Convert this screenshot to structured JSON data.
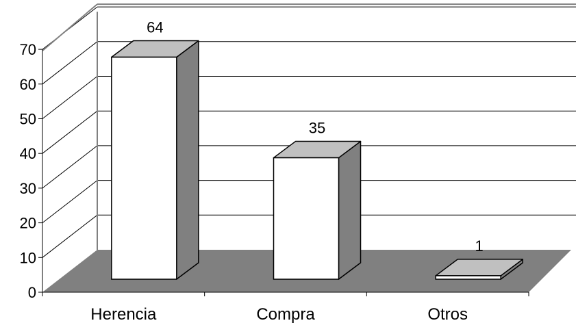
{
  "chart_data": {
    "type": "bar",
    "style": "3d-column",
    "categories": [
      "Herencia",
      "Compra",
      "Otros"
    ],
    "values": [
      64,
      35,
      1
    ],
    "data_labels": [
      "64",
      "35",
      "1"
    ],
    "ylim": [
      0,
      70
    ],
    "yticks": [
      "0",
      "10",
      "20",
      "30",
      "40",
      "50",
      "60",
      "70"
    ],
    "grid": true,
    "legend": "none",
    "colors": {
      "bar_front": "#ffffff",
      "bar_top": "#c0c0c0",
      "bar_side": "#808080",
      "floor": "#808080",
      "gridline": "#000000",
      "wall_edge": "#808080"
    }
  }
}
